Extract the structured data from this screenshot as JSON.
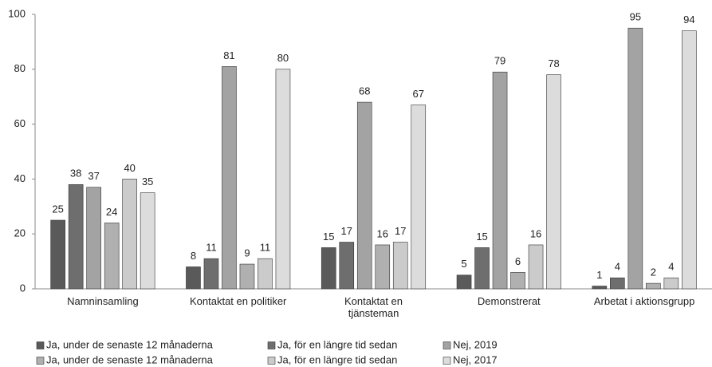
{
  "chart_data": {
    "type": "bar",
    "categories": [
      "Namninsamling",
      "Kontaktat en politiker",
      "Kontaktat en tjänsteman",
      "Demonstrerat",
      "Arbetat i aktionsgrupp"
    ],
    "series": [
      {
        "name": "Ja, under de senaste 12 månaderna",
        "color": "#5a5a5a",
        "values": [
          25,
          8,
          15,
          5,
          1
        ]
      },
      {
        "name": "Ja, för en längre tid sedan",
        "color": "#6e6e6e",
        "values": [
          38,
          11,
          17,
          15,
          4
        ]
      },
      {
        "name": "Nej, 2019",
        "color": "#a3a3a3",
        "values": [
          37,
          81,
          68,
          79,
          95
        ]
      },
      {
        "name": "Ja, under de senaste 12 månaderna",
        "color": "#b0b0b0",
        "values": [
          24,
          9,
          16,
          6,
          2
        ]
      },
      {
        "name": "Ja, för en längre tid sedan",
        "color": "#cbcbcb",
        "values": [
          40,
          11,
          17,
          16,
          4
        ]
      },
      {
        "name": "Nej, 2017",
        "color": "#dcdcdc",
        "values": [
          35,
          80,
          67,
          78,
          94
        ]
      }
    ],
    "ylim": [
      0,
      100
    ],
    "yticks": [
      0,
      20,
      40,
      60,
      80,
      100
    ],
    "grid": false
  }
}
